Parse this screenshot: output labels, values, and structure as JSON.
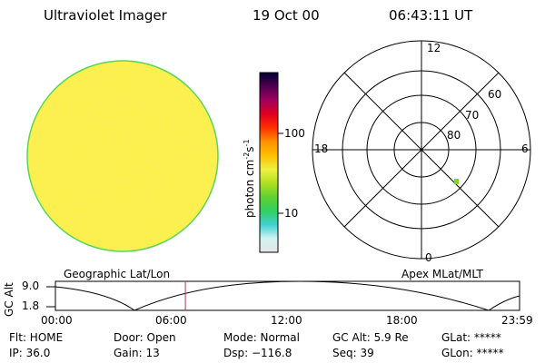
{
  "header": {
    "title": "Ultraviolet Imager",
    "date": "19 Oct 00",
    "time": "06:43:11 UT"
  },
  "colorbar": {
    "label": "photon cm",
    "label_sup1": "-2",
    "label_s": "s",
    "label_sup2": "-1",
    "tick_labels": [
      "100",
      "10"
    ],
    "scale": "log",
    "stops": [
      "#e6e6e6",
      "#d0f2f2",
      "#40d0d0",
      "#30d060",
      "#60d030",
      "#b0e020",
      "#f0f040",
      "#ffc000",
      "#ff9000",
      "#ff3000",
      "#e00020",
      "#a00060",
      "#500050",
      "#000030"
    ]
  },
  "polar_plot": {
    "hour_labels": {
      "top": "12",
      "left": "18",
      "right": "6",
      "bottom": "0"
    },
    "lat_labels": [
      "60",
      "70",
      "80"
    ],
    "title": "Apex MLat/MLT"
  },
  "geo_plot": {
    "title": "Geographic Lat/Lon",
    "fill_color": "#fbf14a",
    "rim_color": "#59d659"
  },
  "timeline": {
    "ylabel": "GC Alt",
    "y_ticks": [
      "9.0",
      "1.8"
    ],
    "x_ticks": [
      "00:00",
      "06:00",
      "12:00",
      "18:00",
      "23:59"
    ],
    "current_time_hours": 6.72,
    "marker_color": "#b03060"
  },
  "status": {
    "row1": {
      "flt": "Flt: HOME",
      "door": "Door: Open",
      "mode": "Mode: Normal",
      "gcalt": "GC Alt: 5.9 Re",
      "glat": "GLat: *****"
    },
    "row2": {
      "ip": "IP: 36.0",
      "gain": "Gain: 13",
      "dsp": "Dsp: −116.8",
      "seq": "Seq: 39",
      "glon": "GLon: *****"
    }
  }
}
